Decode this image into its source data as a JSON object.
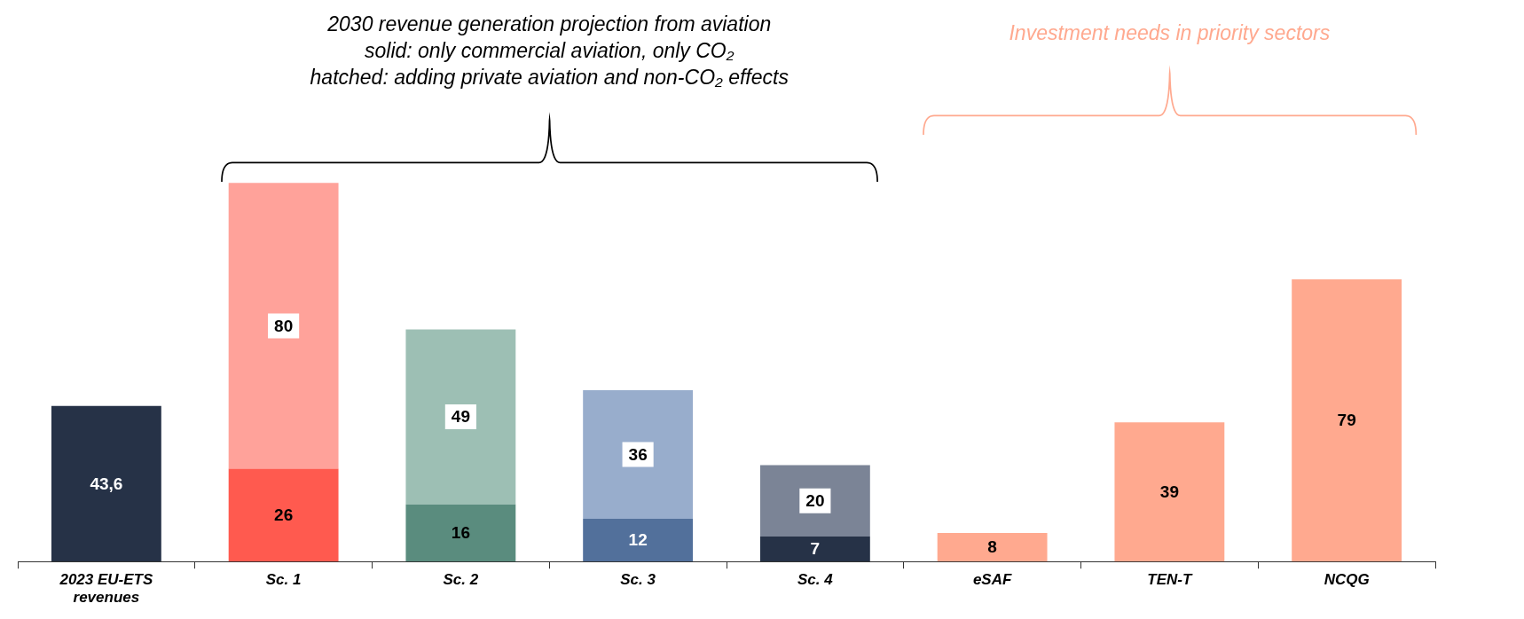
{
  "chart_data": {
    "type": "bar",
    "stacked": true,
    "grid": false,
    "legend": false,
    "categories": [
      "2023 EU-ETS revenues",
      "Sc. 1",
      "Sc. 2",
      "Sc. 3",
      "Sc. 4",
      "eSAF",
      "TEN-T",
      "NCQG"
    ],
    "series": [
      {
        "colors": [
          "#263247",
          "#ff5a4f",
          "#5a8c7e",
          "#52709b",
          "#263247",
          "#ffa98f",
          "#ffa98f",
          "#ffa98f"
        ],
        "values": [
          43.6,
          26,
          16,
          12,
          7,
          8,
          39,
          79
        ],
        "value_labels": [
          "43,6",
          "26",
          "16",
          "12",
          "7",
          "8",
          "39",
          "79"
        ]
      },
      {
        "colors": [
          null,
          "#ffa29a",
          "#9dbfb4",
          "#98adcc",
          "#7b8496",
          null,
          null,
          null
        ],
        "values": [
          null,
          80,
          49,
          36,
          20,
          null,
          null,
          null
        ],
        "value_labels": [
          null,
          "80",
          "49",
          "36",
          "20",
          null,
          null,
          null
        ]
      }
    ],
    "annotations": [
      "2030 revenue generation projection from aviation\nsolid: only commercial aviation, only CO₂\nhatched: adding private aviation and non-CO₂ effects",
      "Investment needs in priority sectors"
    ]
  }
}
